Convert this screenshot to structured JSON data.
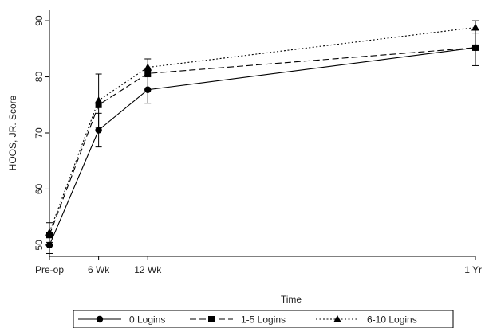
{
  "chart_data": {
    "type": "line",
    "categories": [
      "Pre-op",
      "6 Wk",
      "12 Wk",
      "1 Yr"
    ],
    "x_positions": [
      0,
      6,
      12,
      52
    ],
    "xlabel": "Time",
    "ylabel": "HOOS, JR. Score",
    "ylim": [
      48,
      92
    ],
    "yticks": [
      50,
      60,
      70,
      80,
      90
    ],
    "grid": false,
    "legend_position": "bottom",
    "series": [
      {
        "name": "0 Logins",
        "marker": "circle",
        "line_style": "solid",
        "color": "#000000",
        "values": [
          50.0,
          70.5,
          77.7,
          85.2
        ],
        "error_low": [
          48.5,
          67.5,
          75.3,
          82.0
        ],
        "error_high": [
          51.6,
          73.5,
          80.0,
          88.5
        ]
      },
      {
        "name": "1-5 Logins",
        "marker": "square",
        "line_style": "dashed",
        "color": "#000000",
        "values": [
          51.8,
          75.0,
          80.6,
          85.2
        ],
        "error_low": null,
        "error_high": null
      },
      {
        "name": "6-10 Logins",
        "marker": "triangle",
        "line_style": "dotted",
        "color": "#000000",
        "values": [
          52.3,
          75.8,
          81.7,
          88.8
        ],
        "error_low": [
          50.5,
          71.0,
          80.2,
          87.8
        ],
        "error_high": [
          54.0,
          80.5,
          83.2,
          90.0
        ]
      }
    ]
  }
}
